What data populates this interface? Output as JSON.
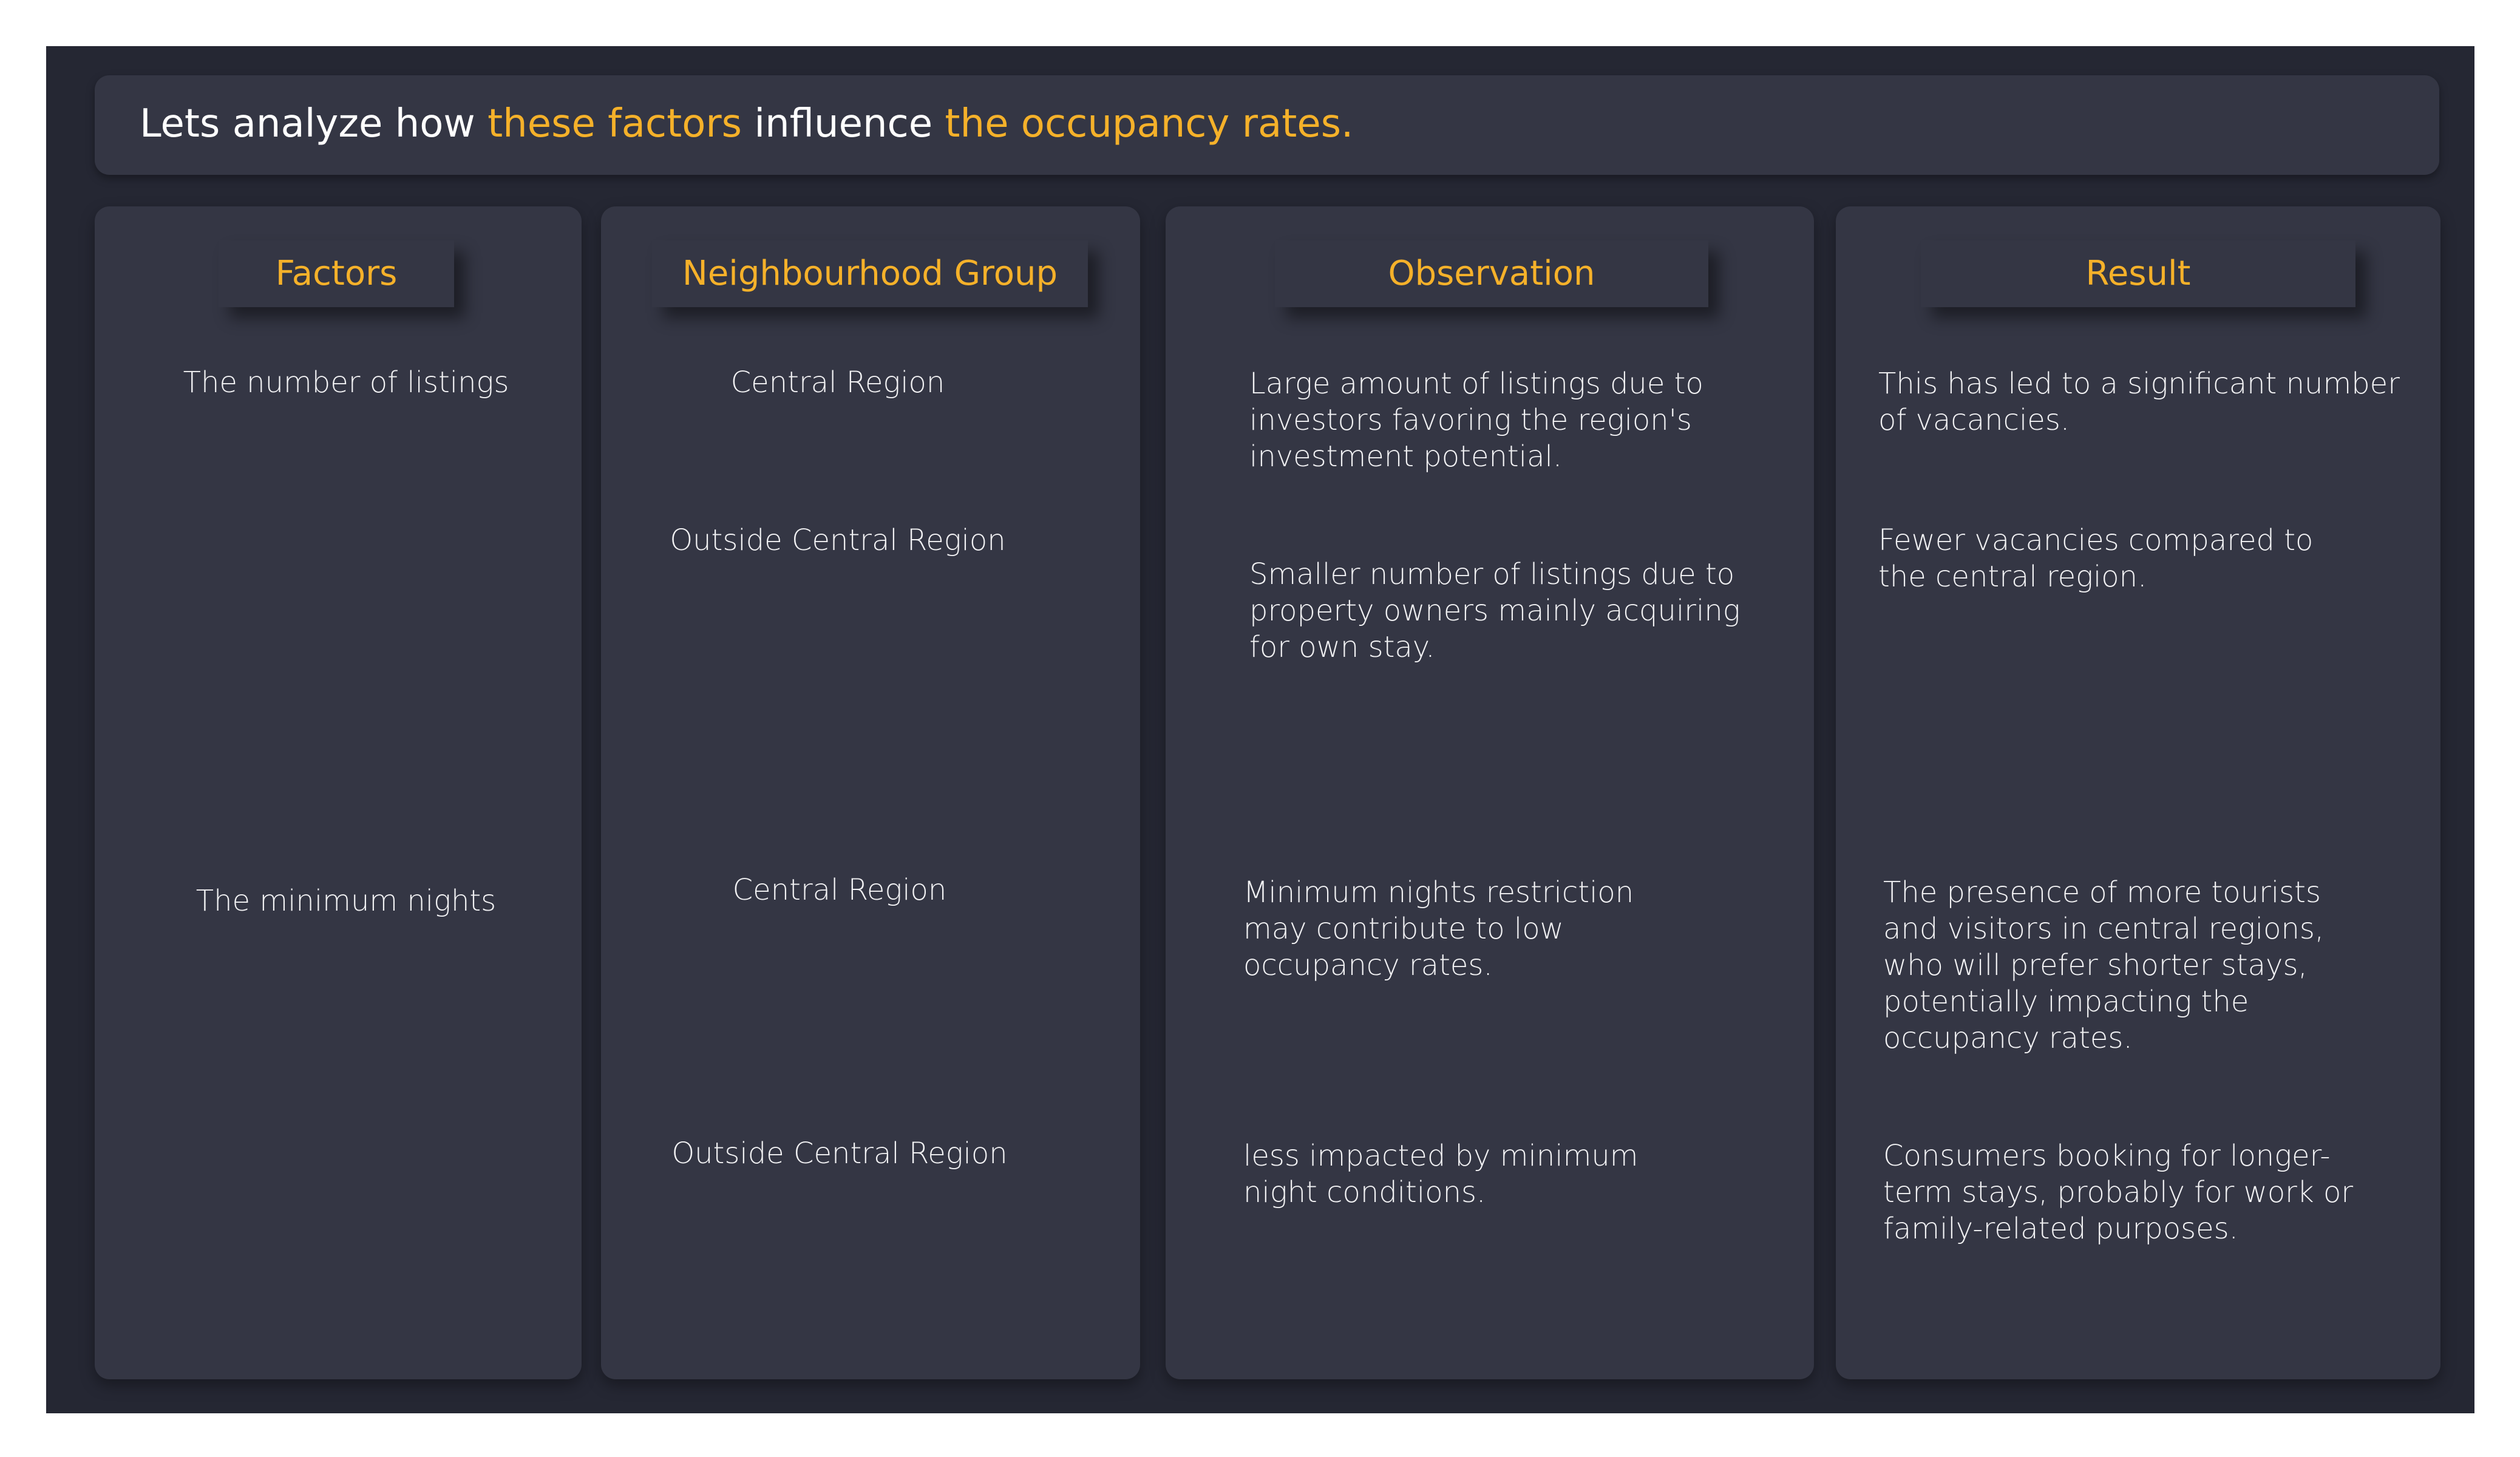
{
  "header": {
    "part1": "Lets analyze how ",
    "part2": "these factors",
    "part3": " influence ",
    "part4": "the occupancy rates."
  },
  "columns": {
    "factors": {
      "title": "Factors",
      "items": [
        "The number of listings",
        "The minimum nights"
      ]
    },
    "neighbourhood": {
      "title": "Neighbourhood Group",
      "items": [
        "Central Region",
        "Outside Central Region",
        "Central Region",
        "Outside Central Region"
      ]
    },
    "observation": {
      "title": "Observation",
      "items": [
        "Large amount of listings due to investors favoring the region's investment potential.",
        "Smaller number of listings due to property owners mainly acquiring for own stay.",
        "Minimum nights restriction may contribute to low occupancy rates.",
        "less impacted by minimum night conditions."
      ]
    },
    "result": {
      "title": "Result",
      "items": [
        "This has led to a significant number of vacancies.",
        "Fewer vacancies compared to the central region.",
        "The presence of more tourists and visitors in central regions, who will prefer shorter stays, potentially impacting the occupancy rates.",
        "Consumers booking for longer-term stays, probably for work or family-related purposes."
      ]
    }
  },
  "colors": {
    "frame": "#252733",
    "panel": "#343644",
    "accent": "#f5b12a",
    "text": "#f1f1f3"
  }
}
